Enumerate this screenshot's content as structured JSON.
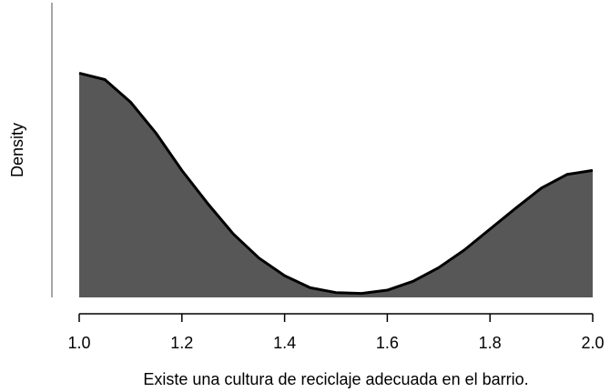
{
  "chart_data": {
    "type": "density",
    "x_label": "Existe una cultura de reciclaje adecuada en el barrio.",
    "y_label": "Density",
    "x": [
      1.0,
      1.05,
      1.1,
      1.15,
      1.2,
      1.25,
      1.3,
      1.35,
      1.4,
      1.45,
      1.5,
      1.55,
      1.6,
      1.65,
      1.7,
      1.75,
      1.8,
      1.85,
      1.9,
      1.95,
      2.0
    ],
    "values": [
      2.79,
      2.71,
      2.43,
      2.04,
      1.58,
      1.17,
      0.79,
      0.49,
      0.27,
      0.12,
      0.06,
      0.05,
      0.09,
      0.2,
      0.37,
      0.59,
      0.85,
      1.11,
      1.36,
      1.53,
      1.58
    ],
    "color": "#575757",
    "line_color": "#000000",
    "xlim": [
      1.0,
      2.0
    ],
    "xticks": [
      {
        "value": 1.0,
        "label": "1.0"
      },
      1.2,
      1.4,
      1.6,
      1.8,
      {
        "value": 2.0,
        "label": "2.0"
      }
    ],
    "ylim": [
      0,
      3.7
    ]
  }
}
